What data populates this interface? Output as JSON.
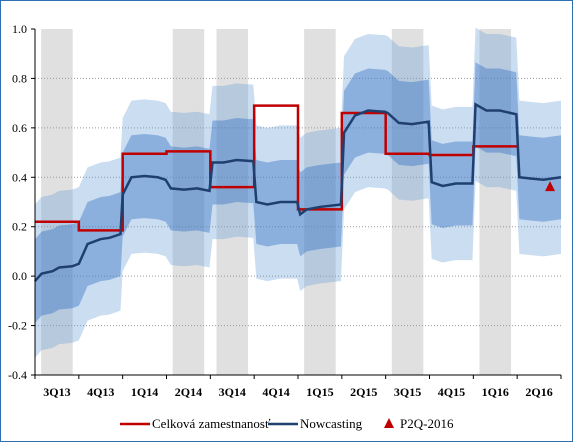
{
  "chart_data": {
    "type": "line",
    "title": "",
    "xlabel": "",
    "ylabel": "",
    "ylim": [
      -0.4,
      1.0
    ],
    "y_ticks": [
      "1.0",
      "0.8",
      "0.6",
      "0.4",
      "0.2",
      "0.0",
      "-0.2",
      "-0.4"
    ],
    "categories": [
      "3Q13",
      "4Q13",
      "1Q14",
      "2Q14",
      "3Q14",
      "4Q14",
      "1Q15",
      "2Q15",
      "3Q15",
      "4Q15",
      "1Q16",
      "2Q16"
    ],
    "shaded_quarters": [
      "3Q13",
      "2Q14",
      "3Q14",
      "1Q15",
      "3Q15",
      "1Q16"
    ],
    "grid": "horizontal dotted",
    "legend_position": "bottom",
    "series": [
      {
        "name": "Celková zamestnanosť",
        "color": "#c00000",
        "type": "step",
        "values": [
          0.22,
          0.185,
          0.495,
          0.505,
          0.36,
          0.69,
          0.27,
          0.66,
          0.495,
          0.49,
          0.525,
          null
        ]
      },
      {
        "name": "Nowcasting",
        "color": "#1f3f6f",
        "type": "line",
        "points": [
          [
            0.0,
            -0.02
          ],
          [
            0.15,
            0.01
          ],
          [
            0.4,
            0.02
          ],
          [
            0.55,
            0.035
          ],
          [
            0.85,
            0.04
          ],
          [
            1.0,
            0.05
          ],
          [
            1.2,
            0.13
          ],
          [
            1.5,
            0.15
          ],
          [
            1.7,
            0.155
          ],
          [
            1.95,
            0.17
          ],
          [
            2.0,
            0.33
          ],
          [
            2.2,
            0.4
          ],
          [
            2.5,
            0.405
          ],
          [
            2.8,
            0.4
          ],
          [
            2.98,
            0.39
          ],
          [
            3.1,
            0.355
          ],
          [
            3.4,
            0.35
          ],
          [
            3.7,
            0.355
          ],
          [
            3.98,
            0.345
          ],
          [
            4.05,
            0.46
          ],
          [
            4.3,
            0.46
          ],
          [
            4.6,
            0.47
          ],
          [
            4.98,
            0.465
          ],
          [
            5.05,
            0.3
          ],
          [
            5.3,
            0.29
          ],
          [
            5.6,
            0.3
          ],
          [
            5.98,
            0.3
          ],
          [
            6.05,
            0.25
          ],
          [
            6.2,
            0.27
          ],
          [
            6.5,
            0.28
          ],
          [
            6.98,
            0.29
          ],
          [
            7.05,
            0.58
          ],
          [
            7.3,
            0.65
          ],
          [
            7.6,
            0.67
          ],
          [
            7.98,
            0.665
          ],
          [
            8.05,
            0.66
          ],
          [
            8.3,
            0.62
          ],
          [
            8.6,
            0.615
          ],
          [
            8.98,
            0.625
          ],
          [
            9.05,
            0.38
          ],
          [
            9.3,
            0.365
          ],
          [
            9.6,
            0.375
          ],
          [
            9.98,
            0.375
          ],
          [
            10.05,
            0.695
          ],
          [
            10.3,
            0.67
          ],
          [
            10.6,
            0.67
          ],
          [
            10.98,
            0.655
          ],
          [
            11.05,
            0.4
          ],
          [
            11.3,
            0.395
          ],
          [
            11.6,
            0.39
          ],
          [
            12.0,
            0.4
          ]
        ],
        "band_inner_halfwidth": 0.17,
        "band_outer_halfwidth": 0.31
      },
      {
        "name": "P2Q-2016",
        "color": "#c00000",
        "type": "marker",
        "points": [
          [
            11.75,
            0.36
          ]
        ]
      }
    ],
    "band_colors": {
      "outer": "#6a9fd8",
      "inner": "#2d6fc4",
      "outer_opacity": 0.35,
      "inner_opacity": 0.4,
      "shade": "#e0e0e0"
    }
  }
}
